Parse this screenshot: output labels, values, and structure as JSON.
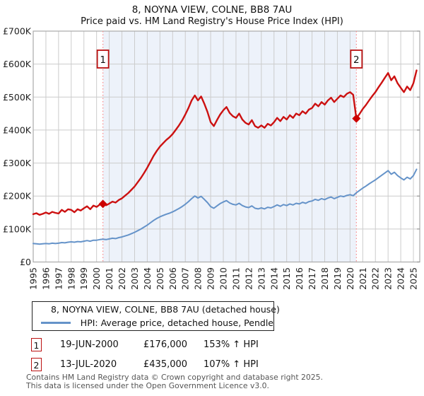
{
  "chart_data": {
    "type": "line",
    "title": "8, NOYNA VIEW, COLNE, BB8 7AU",
    "subtitle": "Price paid vs. HM Land Registry's House Price Index (HPI)",
    "x_start": 1995,
    "x_step": 0.25,
    "x_range": [
      1995,
      2025.5
    ],
    "ylim": [
      0,
      700000
    ],
    "grid": true,
    "legend_position": "bottom",
    "x_ticks": [
      1995,
      1996,
      1997,
      1998,
      1999,
      2000,
      2001,
      2002,
      2003,
      2004,
      2005,
      2006,
      2007,
      2008,
      2009,
      2010,
      2011,
      2012,
      2013,
      2014,
      2015,
      2016,
      2017,
      2018,
      2019,
      2020,
      2021,
      2022,
      2023,
      2024,
      2025
    ],
    "y_ticks": [
      {
        "value": 0,
        "label": "£0"
      },
      {
        "value": 100000,
        "label": "£100K"
      },
      {
        "value": 200000,
        "label": "£200K"
      },
      {
        "value": 300000,
        "label": "£300K"
      },
      {
        "value": 400000,
        "label": "£400K"
      },
      {
        "value": 500000,
        "label": "£500K"
      },
      {
        "value": 600000,
        "label": "£600K"
      },
      {
        "value": 700000,
        "label": "£700K"
      }
    ],
    "shaded_span": {
      "from": 2000.5,
      "to": 2020.5,
      "color": "#edf2fa"
    },
    "marker_line_color": "#fa8a8a",
    "marker_point_color": "#cc0000",
    "marker_box_border": "#bb1111",
    "grid_color": "#cccccc",
    "border_color": "#aaaaaa",
    "series": [
      {
        "name": "8, NOYNA VIEW, COLNE, BB8 7AU (detached house)",
        "color": "#cc1111",
        "width": 2.4,
        "values": [
          145000,
          148000,
          143000,
          146000,
          150000,
          146000,
          152000,
          149000,
          147000,
          158000,
          152000,
          160000,
          158000,
          151000,
          160000,
          156000,
          163000,
          169000,
          160000,
          171000,
          167000,
          174000,
          176000,
          172000,
          177000,
          183000,
          180000,
          188000,
          193000,
          201000,
          209000,
          219000,
          229000,
          242000,
          255000,
          270000,
          286000,
          304000,
          322000,
          337000,
          350000,
          360000,
          370000,
          378000,
          388000,
          401000,
          414000,
          429000,
          447000,
          467000,
          490000,
          505000,
          490000,
          502000,
          480000,
          455000,
          424000,
          412000,
          430000,
          447000,
          460000,
          470000,
          452000,
          442000,
          437000,
          450000,
          432000,
          422000,
          417000,
          430000,
          412000,
          407000,
          414000,
          407000,
          419000,
          414000,
          424000,
          437000,
          427000,
          440000,
          432000,
          445000,
          437000,
          450000,
          445000,
          457000,
          450000,
          462000,
          467000,
          480000,
          472000,
          485000,
          477000,
          490000,
          498000,
          485000,
          495000,
          505000,
          500000,
          510000,
          515000,
          507000,
          435000,
          449000,
          464000,
          476000,
          490000,
          503000,
          515000,
          530000,
          544000,
          559000,
          573000,
          551000,
          563000,
          542000,
          528000,
          515000,
          532000,
          521000,
          542000,
          581000
        ]
      },
      {
        "name": "HPI: Average price, detached house, Pendle",
        "color": "#6593c9",
        "width": 2,
        "values": [
          56000,
          55000,
          54000,
          55000,
          56000,
          55000,
          57000,
          56000,
          57000,
          59000,
          58000,
          60000,
          61000,
          60000,
          62000,
          61000,
          63000,
          65000,
          63000,
          66000,
          66000,
          68000,
          69000,
          68000,
          70000,
          72000,
          71000,
          74000,
          76000,
          79000,
          82000,
          86000,
          90000,
          95000,
          100000,
          106000,
          112000,
          119000,
          126000,
          132000,
          137000,
          141000,
          145000,
          148000,
          152000,
          157000,
          162000,
          168000,
          175000,
          183000,
          192000,
          200000,
          194000,
          199000,
          190000,
          180000,
          168000,
          163000,
          170000,
          177000,
          182000,
          186000,
          179000,
          175000,
          173000,
          178000,
          171000,
          167000,
          165000,
          170000,
          163000,
          161000,
          164000,
          161000,
          166000,
          164000,
          168000,
          173000,
          169000,
          174000,
          171000,
          176000,
          173000,
          178000,
          176000,
          181000,
          178000,
          183000,
          185000,
          190000,
          187000,
          192000,
          189000,
          194000,
          197000,
          192000,
          196000,
          200000,
          198000,
          202000,
          204000,
          201000,
          210000,
          217000,
          224000,
          230000,
          237000,
          243000,
          249000,
          256000,
          263000,
          270000,
          277000,
          266000,
          272000,
          262000,
          255000,
          249000,
          257000,
          252000,
          262000,
          281000
        ]
      }
    ],
    "sale_markers": [
      {
        "label": "1",
        "x": 2000.5,
        "value": 176000
      },
      {
        "label": "2",
        "x": 2020.5,
        "value": 435000
      }
    ]
  },
  "transactions": [
    {
      "num": "1",
      "date": "19-JUN-2000",
      "price": "£176,000",
      "hpi": "153% ↑ HPI"
    },
    {
      "num": "2",
      "date": "13-JUL-2020",
      "price": "£435,000",
      "hpi": "107% ↑ HPI"
    }
  ],
  "footer": {
    "line1": "Contains HM Land Registry data © Crown copyright and database right 2025.",
    "line2": "This data is licensed under the Open Government Licence v3.0."
  }
}
